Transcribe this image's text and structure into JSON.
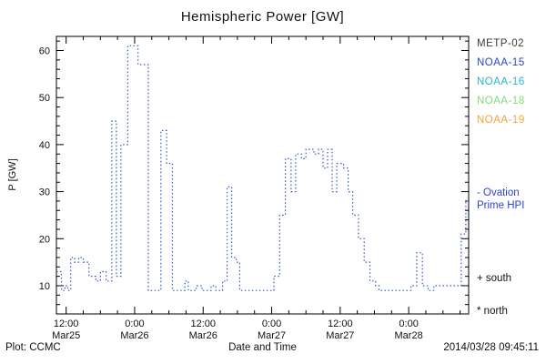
{
  "chart": {
    "title": "Hemispheric Power [GW]",
    "xlabel": "Date and Time",
    "ylabel": "P [GW]"
  },
  "footer": {
    "left": "Plot: CCMC",
    "right": "2014/03/28 09:45:11"
  },
  "legend": {
    "items": [
      {
        "label": "METP-02",
        "color": "#3a3a3a"
      },
      {
        "label": "NOAA-15",
        "color": "#2a46c8"
      },
      {
        "label": "NOAA-16",
        "color": "#27b7cf"
      },
      {
        "label": "NOAA-18",
        "color": "#7fd97f"
      },
      {
        "label": "NOAA-19",
        "color": "#f5a33a"
      }
    ],
    "model": {
      "line1": "- Ovation",
      "line2": "Prime HPI",
      "color": "#2a46c8"
    },
    "south_label": "+ south",
    "north_label": "* north"
  },
  "chart_data": {
    "type": "line",
    "style": "dotted-step",
    "title": "Hemispheric Power [GW]",
    "xlabel": "Date and Time",
    "ylabel": "P [GW]",
    "x_unit": "hours since Mar25 00:00",
    "xlim_hours": [
      10.3,
      82.5
    ],
    "ylim": [
      4,
      63
    ],
    "grid": false,
    "y_ticks": [
      10,
      20,
      30,
      40,
      50,
      60
    ],
    "x_ticks": [
      {
        "hours": 12,
        "time": "12:00",
        "date": "Mar25"
      },
      {
        "hours": 24,
        "time": "0:00",
        "date": "Mar26"
      },
      {
        "hours": 36,
        "time": "12:00",
        "date": "Mar26"
      },
      {
        "hours": 48,
        "time": "0:00",
        "date": "Mar27"
      },
      {
        "hours": 60,
        "time": "12:00",
        "date": "Mar27"
      },
      {
        "hours": 72,
        "time": "0:00",
        "date": "Mar28"
      }
    ],
    "series": [
      {
        "name": "Ovation Prime HPI",
        "color": "#3355cc",
        "points": [
          [
            10.3,
            13
          ],
          [
            11.2,
            9
          ],
          [
            11.8,
            10
          ],
          [
            12.3,
            9
          ],
          [
            12.8,
            16
          ],
          [
            13.5,
            15
          ],
          [
            14.2,
            16
          ],
          [
            15.0,
            15
          ],
          [
            16.0,
            12
          ],
          [
            17.2,
            11
          ],
          [
            18.0,
            13
          ],
          [
            19.0,
            11
          ],
          [
            20.0,
            45
          ],
          [
            20.8,
            12
          ],
          [
            21.6,
            40
          ],
          [
            22.8,
            61
          ],
          [
            24.6,
            57
          ],
          [
            26.4,
            9
          ],
          [
            28.6,
            43
          ],
          [
            29.6,
            36
          ],
          [
            30.6,
            9
          ],
          [
            32.8,
            11
          ],
          [
            33.4,
            9
          ],
          [
            34.8,
            10
          ],
          [
            35.8,
            9
          ],
          [
            37.4,
            10
          ],
          [
            38.2,
            9
          ],
          [
            39.4,
            11
          ],
          [
            40.2,
            31
          ],
          [
            41.0,
            16
          ],
          [
            41.8,
            15
          ],
          [
            42.4,
            9
          ],
          [
            48.4,
            12
          ],
          [
            49.4,
            25
          ],
          [
            50.4,
            37
          ],
          [
            51.4,
            30
          ],
          [
            52.2,
            38
          ],
          [
            53.2,
            37
          ],
          [
            54.0,
            39
          ],
          [
            55.4,
            38
          ],
          [
            56.2,
            39
          ],
          [
            57.0,
            35
          ],
          [
            57.8,
            39
          ],
          [
            58.6,
            30
          ],
          [
            59.4,
            36
          ],
          [
            60.6,
            35
          ],
          [
            61.4,
            30
          ],
          [
            62.2,
            25
          ],
          [
            63.2,
            20
          ],
          [
            64.2,
            15
          ],
          [
            65.2,
            11
          ],
          [
            66.2,
            10
          ],
          [
            66.8,
            9
          ],
          [
            72.4,
            10
          ],
          [
            73.4,
            17
          ],
          [
            74.4,
            10
          ],
          [
            75.4,
            9
          ],
          [
            76.4,
            10
          ],
          [
            80.6,
            10
          ],
          [
            81.2,
            21
          ],
          [
            82.0,
            28
          ]
        ]
      }
    ]
  }
}
